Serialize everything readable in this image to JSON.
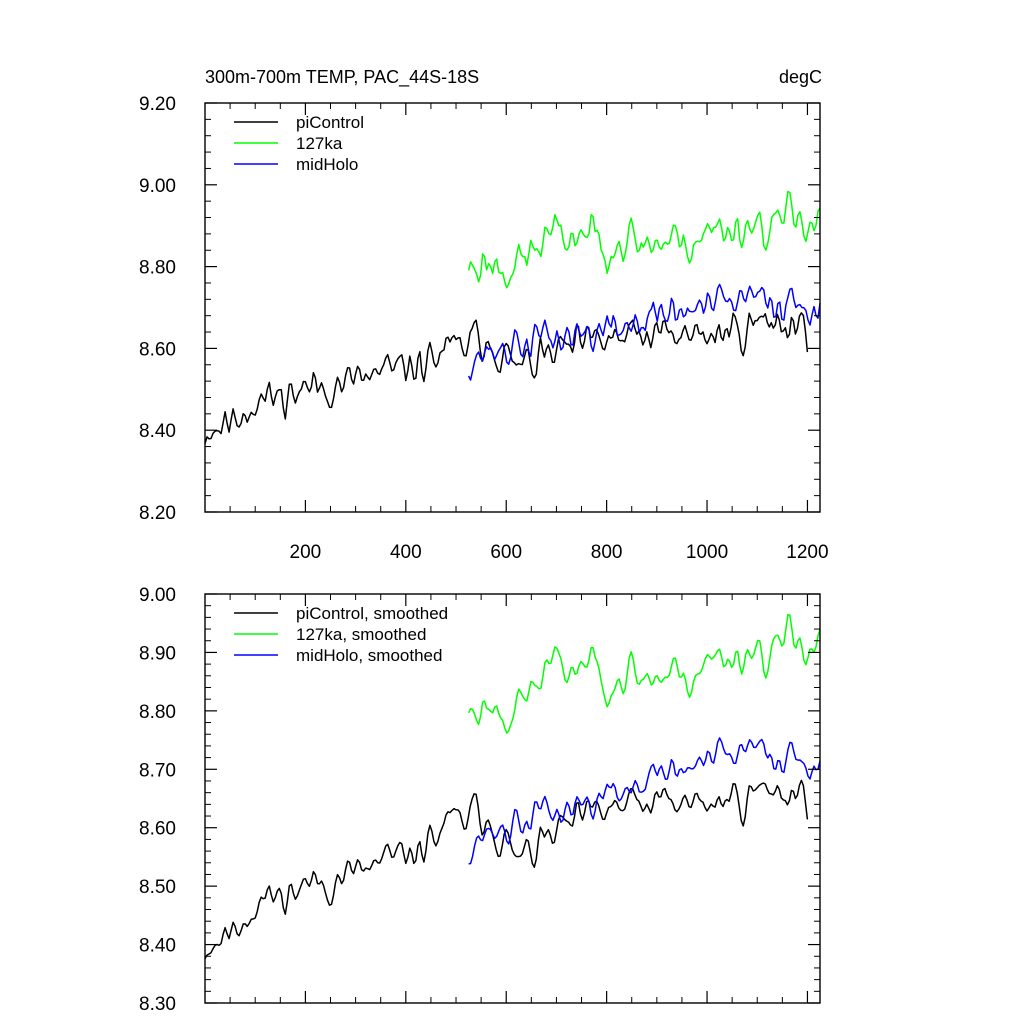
{
  "chart_data": [
    {
      "type": "line",
      "title": "300m-700m TEMP, PAC_44S-18S",
      "units": "degC",
      "xlabel": "",
      "ylabel": "",
      "xlim": [
        0,
        1225
      ],
      "ylim": [
        8.2,
        9.2
      ],
      "xticks": [
        200,
        400,
        600,
        800,
        1000,
        1200
      ],
      "xtick_labels": [
        "200",
        "400",
        "600",
        "800",
        "1000",
        "1200"
      ],
      "yticks": [
        8.2,
        8.4,
        8.6,
        8.8,
        9.0,
        9.2
      ],
      "ytick_labels": [
        "8.20",
        "8.40",
        "8.60",
        "8.80",
        "9.00",
        "9.20"
      ],
      "legend": "top-left",
      "series": [
        {
          "name": "piControl",
          "color": "#000000",
          "start": 0,
          "end": 1200,
          "step": 4,
          "seed": 11,
          "noise": 0.038,
          "smooth": 1,
          "trend": [
            [
              0,
              8.4
            ],
            [
              50,
              8.42
            ],
            [
              100,
              8.47
            ],
            [
              200,
              8.5
            ],
            [
              300,
              8.52
            ],
            [
              400,
              8.55
            ],
            [
              500,
              8.6
            ],
            [
              560,
              8.63
            ],
            [
              620,
              8.55
            ],
            [
              700,
              8.59
            ],
            [
              800,
              8.62
            ],
            [
              900,
              8.63
            ],
            [
              1000,
              8.63
            ],
            [
              1100,
              8.66
            ],
            [
              1200,
              8.67
            ]
          ]
        },
        {
          "name": "127ka",
          "color": "#00ff00",
          "start": 525,
          "end": 1225,
          "step": 4,
          "seed": 23,
          "noise": 0.045,
          "smooth": 1,
          "trend": [
            [
              525,
              8.8
            ],
            [
              560,
              8.81
            ],
            [
              620,
              8.8
            ],
            [
              680,
              8.87
            ],
            [
              750,
              8.88
            ],
            [
              850,
              8.86
            ],
            [
              950,
              8.86
            ],
            [
              1050,
              8.9
            ],
            [
              1150,
              8.91
            ],
            [
              1225,
              8.93
            ]
          ]
        },
        {
          "name": "midHolo",
          "color": "#0000ff",
          "start": 525,
          "end": 1225,
          "step": 4,
          "seed": 37,
          "noise": 0.038,
          "smooth": 1,
          "trend": [
            [
              525,
              8.58
            ],
            [
              600,
              8.6
            ],
            [
              700,
              8.63
            ],
            [
              800,
              8.64
            ],
            [
              900,
              8.68
            ],
            [
              1000,
              8.7
            ],
            [
              1100,
              8.72
            ],
            [
              1200,
              8.71
            ],
            [
              1225,
              8.72
            ]
          ]
        }
      ]
    },
    {
      "type": "line",
      "title": "",
      "units": "",
      "xlabel": "",
      "ylabel": "",
      "xlim": [
        0,
        1225
      ],
      "ylim": [
        8.3,
        9.0
      ],
      "xticks": [
        200,
        400,
        600,
        800,
        1000,
        1200
      ],
      "xtick_labels": [
        "",
        "",
        "",
        "",
        "",
        ""
      ],
      "yticks": [
        8.3,
        8.4,
        8.5,
        8.6,
        8.7,
        8.8,
        8.9,
        9.0
      ],
      "ytick_labels": [
        "8.30",
        "8.40",
        "8.50",
        "8.60",
        "8.70",
        "8.80",
        "8.90",
        "9.00"
      ],
      "legend": "top-left",
      "series": [
        {
          "name": "piControl, smoothed",
          "color": "#000000",
          "start": 0,
          "end": 1200,
          "step": 4,
          "seed": 11,
          "noise": 0.032,
          "smooth": 2,
          "trend": [
            [
              0,
              8.4
            ],
            [
              50,
              8.42
            ],
            [
              100,
              8.47
            ],
            [
              200,
              8.5
            ],
            [
              300,
              8.52
            ],
            [
              400,
              8.55
            ],
            [
              500,
              8.61
            ],
            [
              560,
              8.63
            ],
            [
              620,
              8.54
            ],
            [
              700,
              8.59
            ],
            [
              800,
              8.63
            ],
            [
              900,
              8.64
            ],
            [
              1000,
              8.64
            ],
            [
              1100,
              8.66
            ],
            [
              1200,
              8.67
            ]
          ]
        },
        {
          "name": "127ka, smoothed",
          "color": "#00ff00",
          "start": 525,
          "end": 1225,
          "step": 4,
          "seed": 23,
          "noise": 0.038,
          "smooth": 2,
          "trend": [
            [
              525,
              8.8
            ],
            [
              560,
              8.81
            ],
            [
              620,
              8.8
            ],
            [
              680,
              8.87
            ],
            [
              750,
              8.88
            ],
            [
              850,
              8.86
            ],
            [
              950,
              8.86
            ],
            [
              1050,
              8.9
            ],
            [
              1150,
              8.91
            ],
            [
              1225,
              8.93
            ]
          ]
        },
        {
          "name": "midHolo, smoothed",
          "color": "#0000ff",
          "start": 525,
          "end": 1225,
          "step": 4,
          "seed": 37,
          "noise": 0.032,
          "smooth": 2,
          "trend": [
            [
              525,
              8.58
            ],
            [
              600,
              8.6
            ],
            [
              700,
              8.63
            ],
            [
              800,
              8.65
            ],
            [
              900,
              8.69
            ],
            [
              1000,
              8.71
            ],
            [
              1100,
              8.73
            ],
            [
              1200,
              8.72
            ],
            [
              1225,
              8.73
            ]
          ]
        }
      ]
    }
  ]
}
